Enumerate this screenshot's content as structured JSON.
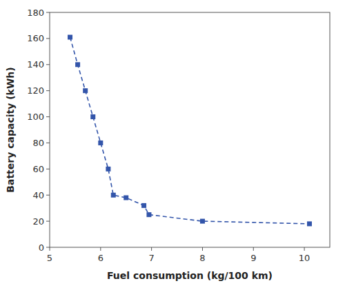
{
  "chart_data": {
    "type": "line",
    "xlabel": "Fuel consumption (kg/100 km)",
    "ylabel": "Battery capacity (kWh)",
    "x": [
      5.4,
      5.55,
      5.7,
      5.85,
      6.0,
      6.15,
      6.25,
      6.5,
      6.85,
      6.95,
      8.0,
      10.1
    ],
    "values": [
      161,
      140,
      120,
      100,
      80,
      60,
      40,
      38,
      32,
      25,
      20,
      18
    ],
    "color": "#3355aa",
    "marker": "square",
    "line_style": "dashed",
    "xlim": [
      5,
      10.5
    ],
    "ylim": [
      0,
      180
    ],
    "xticks": [
      5,
      6,
      7,
      8,
      9,
      10
    ],
    "yticks": [
      0,
      20,
      40,
      60,
      80,
      100,
      120,
      140,
      160,
      180
    ],
    "grid": false
  }
}
